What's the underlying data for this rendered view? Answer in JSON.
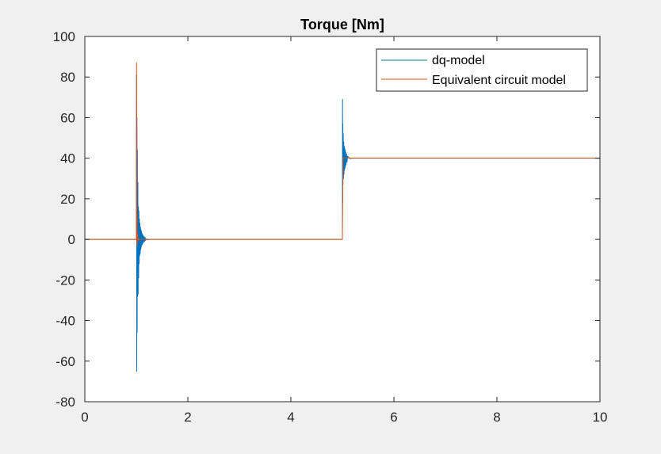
{
  "chart_data": {
    "type": "line",
    "title": "Torque [Nm]",
    "xlabel": "",
    "ylabel": "",
    "xlim": [
      0,
      10
    ],
    "ylim": [
      -80,
      100
    ],
    "x_ticks": [
      0,
      2,
      4,
      6,
      8,
      10
    ],
    "y_ticks": [
      -80,
      -60,
      -40,
      -20,
      0,
      20,
      40,
      60,
      80,
      100
    ],
    "x_tick_labels": [
      "0",
      "2",
      "4",
      "6",
      "8",
      "10"
    ],
    "y_tick_labels": [
      "-80",
      "-60",
      "-40",
      "-20",
      "0",
      "20",
      "40",
      "60",
      "80",
      "100"
    ],
    "grid": false,
    "legend_position": "top-right",
    "series": [
      {
        "name": "dq-model",
        "legend_color": "#007a87",
        "color": "#0072bd",
        "x": [
          0,
          0.99,
          1.0,
          1.004,
          1.008,
          1.012,
          1.016,
          1.02,
          1.025,
          1.03,
          1.035,
          1.04,
          1.045,
          1.05,
          1.055,
          1.06,
          1.065,
          1.07,
          1.075,
          1.08,
          1.085,
          1.09,
          1.095,
          1.1,
          1.105,
          1.11,
          1.115,
          1.12,
          1.125,
          1.13,
          1.14,
          1.15,
          1.16,
          1.17,
          1.18,
          1.2,
          1.22,
          1.25,
          1.3,
          5.0,
          5.003,
          5.006,
          5.009,
          5.012,
          5.016,
          5.02,
          5.025,
          5.03,
          5.035,
          5.04,
          5.045,
          5.05,
          5.055,
          5.06,
          5.065,
          5.07,
          5.08,
          5.09,
          5.1,
          5.12,
          5.15,
          5.2,
          10
        ],
        "y": [
          0,
          0,
          0,
          81,
          -65,
          60,
          -46,
          44,
          -28,
          28,
          -27,
          16,
          -19,
          14,
          -12,
          10,
          -8,
          8,
          -7,
          6,
          -5,
          5,
          -4,
          4,
          -3,
          3,
          -2.5,
          2.5,
          -2,
          2,
          -1.5,
          1.5,
          -1,
          1,
          -0.5,
          0.3,
          -0.2,
          0,
          0,
          0,
          69,
          18,
          57,
          27,
          52,
          30,
          48,
          32,
          46,
          34,
          45,
          35,
          44,
          36,
          43,
          37,
          42,
          38,
          41,
          40.5,
          39.8,
          40,
          40
        ]
      },
      {
        "name": "Equivalent circuit model",
        "color": "#d95319",
        "x": [
          0,
          0.998,
          1.0,
          1.004,
          1.008,
          1.012,
          1.016,
          1.02,
          1.03,
          1.04,
          1.05,
          1.06,
          1.08,
          1.1,
          1.15,
          1.2,
          4.998,
          5.0,
          5.01,
          10
        ],
        "y": [
          0,
          0,
          0,
          87,
          2,
          14,
          -3,
          3,
          -1,
          0.5,
          0,
          0,
          0,
          0,
          0,
          0,
          0,
          0,
          40,
          40
        ]
      }
    ]
  }
}
